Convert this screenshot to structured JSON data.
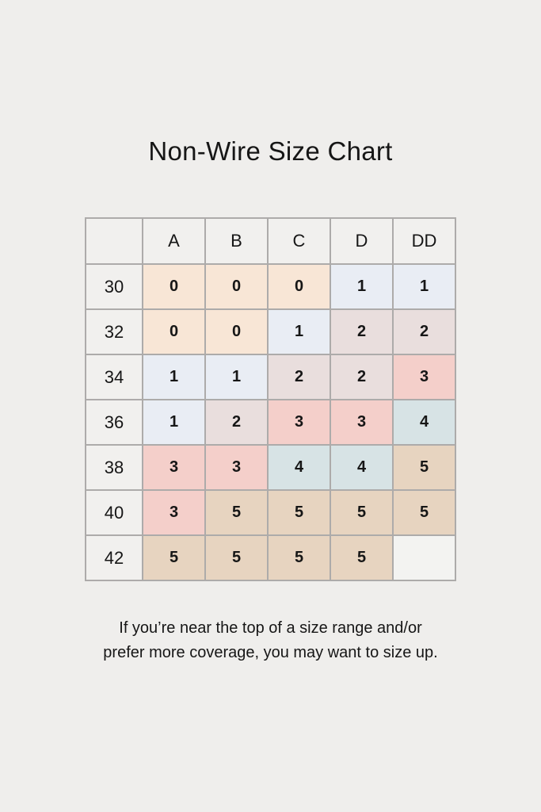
{
  "page": {
    "title": "Non-Wire Size Chart",
    "footnote_line1": "If you’re near the top of a size range and/or",
    "footnote_line2": "prefer more coverage, you may want to size up."
  },
  "colors": {
    "background": "#efeeec",
    "border": "#adabaa",
    "header_cell": "#f1f0ee",
    "text": "#161616",
    "peach": "#f8e6d6",
    "blue": "#e9edf4",
    "mauve": "#e9dedd",
    "pink": "#f4cfca",
    "teal": "#d7e3e5",
    "tan": "#e7d4c0",
    "empty": "#f3f3f1"
  },
  "chart_data": {
    "type": "table",
    "title": "Non-Wire Size Chart",
    "columns": [
      "",
      "A",
      "B",
      "C",
      "D",
      "DD"
    ],
    "rows": [
      {
        "band": "30",
        "cells": [
          {
            "value": "0",
            "color": "peach"
          },
          {
            "value": "0",
            "color": "peach"
          },
          {
            "value": "0",
            "color": "peach"
          },
          {
            "value": "1",
            "color": "blue"
          },
          {
            "value": "1",
            "color": "blue"
          }
        ]
      },
      {
        "band": "32",
        "cells": [
          {
            "value": "0",
            "color": "peach"
          },
          {
            "value": "0",
            "color": "peach"
          },
          {
            "value": "1",
            "color": "blue"
          },
          {
            "value": "2",
            "color": "mauve"
          },
          {
            "value": "2",
            "color": "mauve"
          }
        ]
      },
      {
        "band": "34",
        "cells": [
          {
            "value": "1",
            "color": "blue"
          },
          {
            "value": "1",
            "color": "blue"
          },
          {
            "value": "2",
            "color": "mauve"
          },
          {
            "value": "2",
            "color": "mauve"
          },
          {
            "value": "3",
            "color": "pink"
          }
        ]
      },
      {
        "band": "36",
        "cells": [
          {
            "value": "1",
            "color": "blue"
          },
          {
            "value": "2",
            "color": "mauve"
          },
          {
            "value": "3",
            "color": "pink"
          },
          {
            "value": "3",
            "color": "pink"
          },
          {
            "value": "4",
            "color": "teal"
          }
        ]
      },
      {
        "band": "38",
        "cells": [
          {
            "value": "3",
            "color": "pink"
          },
          {
            "value": "3",
            "color": "pink"
          },
          {
            "value": "4",
            "color": "teal"
          },
          {
            "value": "4",
            "color": "teal"
          },
          {
            "value": "5",
            "color": "tan"
          }
        ]
      },
      {
        "band": "40",
        "cells": [
          {
            "value": "3",
            "color": "pink"
          },
          {
            "value": "5",
            "color": "tan"
          },
          {
            "value": "5",
            "color": "tan"
          },
          {
            "value": "5",
            "color": "tan"
          },
          {
            "value": "5",
            "color": "tan"
          }
        ]
      },
      {
        "band": "42",
        "cells": [
          {
            "value": "5",
            "color": "tan"
          },
          {
            "value": "5",
            "color": "tan"
          },
          {
            "value": "5",
            "color": "tan"
          },
          {
            "value": "5",
            "color": "tan"
          },
          {
            "value": "",
            "color": "empty"
          }
        ]
      }
    ]
  }
}
